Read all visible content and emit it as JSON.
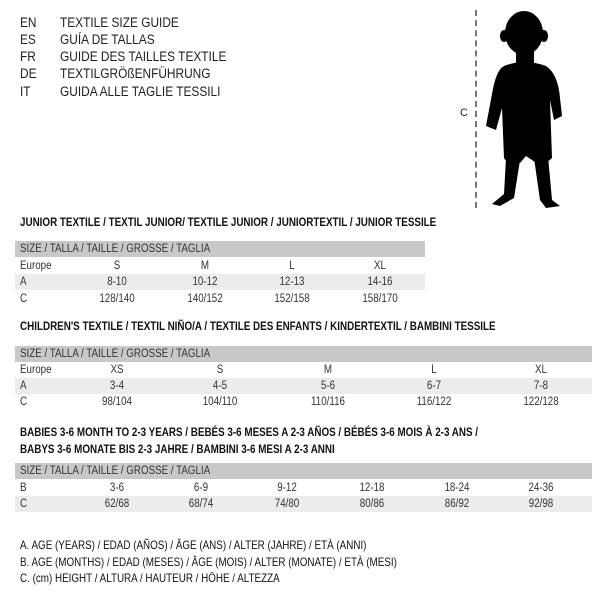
{
  "languages": [
    {
      "code": "EN",
      "text": "TEXTILE SIZE GUIDE"
    },
    {
      "code": "ES",
      "text": "GUÍA DE TALLAS"
    },
    {
      "code": "FR",
      "text": "GUIDE DES TAILLES TEXTILE"
    },
    {
      "code": "DE",
      "text": "TEXTILGRÖßENFÜHRUNG"
    },
    {
      "code": "IT",
      "text": "GUIDA ALLE TAGLIE TESSILI"
    }
  ],
  "figure": {
    "label": "C"
  },
  "junior": {
    "title": "JUNIOR TEXTILE / TEXTIL JUNIOR/ TEXTILE JUNIOR / JUNIORTEXTIL / JUNIOR TESSILE",
    "header": "SIZE / TALLA / TAILLE / GRÖSSE / TAGLIA",
    "rows": [
      {
        "label": "Europe",
        "values": [
          "S",
          "M",
          "L",
          "XL"
        ]
      },
      {
        "label": "A",
        "values": [
          "8-10",
          "10-12",
          "12-13",
          "14-16"
        ]
      },
      {
        "label": "C",
        "values": [
          "128/140",
          "140/152",
          "152/158",
          "158/170"
        ]
      }
    ]
  },
  "children": {
    "title": "CHILDREN'S TEXTILE / TEXTIL NIÑO/A / TEXTILE DES ENFANTS / KINDERTEXTIL / BAMBINI TESSILE",
    "header": "SIZE / TALLA / TAILLE / GRÖSSE / TAGLIA",
    "rows": [
      {
        "label": "Europe",
        "values": [
          "XS",
          "S",
          "M",
          "L",
          "XL"
        ]
      },
      {
        "label": "A",
        "values": [
          "3-4",
          "4-5",
          "5-6",
          "6-7",
          "7-8"
        ]
      },
      {
        "label": "C",
        "values": [
          "98/104",
          "104/110",
          "110/116",
          "116/122",
          "122/128"
        ]
      }
    ]
  },
  "babies": {
    "title_line1": "BABIES 3-6 MONTH TO 2-3 YEARS / BEBÉS 3-6 MESES A 2-3 AÑOS / BÉBÉS 3-6 MOIS À 2-3 ANS /",
    "title_line2": "BABYS 3-6 MONATE BIS 2-3 JAHRE / BAMBINI 3-6 MESI A 2-3 ANNI",
    "header": "SIZE / TALLA / TAILLE / GRÖSSE / TAGLIA",
    "rows": [
      {
        "label": "B",
        "values": [
          "3-6",
          "6-9",
          "9-12",
          "12-18",
          "18-24",
          "24-36"
        ]
      },
      {
        "label": "C",
        "values": [
          "62/68",
          "68/74",
          "74/80",
          "80/86",
          "86/92",
          "92/98"
        ]
      }
    ]
  },
  "legend": [
    "A. AGE (YEARS) / EDAD (AÑOS) / ÂGE (ANS) / ALTER (JAHRE) / ETÀ (ANNI)",
    "B. AGE (MONTHS) / EDAD (MESES) / ÂGE (MOIS) / ALTER (MONATE) / ETÀ (MESI)",
    "C. (cm) HEIGHT / ALTURA / HAUTEUR / HÖHE / ALTEZZA"
  ]
}
